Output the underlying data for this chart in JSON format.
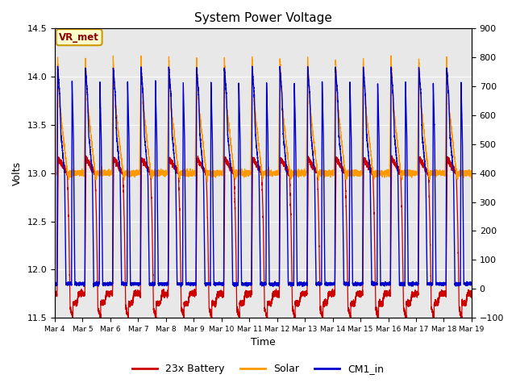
{
  "title": "System Power Voltage",
  "xlabel": "Time",
  "ylabel": "Volts",
  "xlim": [
    0,
    15
  ],
  "ylim_left": [
    11.5,
    14.5
  ],
  "ylim_right": [
    -100,
    900
  ],
  "yticks_left": [
    11.5,
    12.0,
    12.5,
    13.0,
    13.5,
    14.0,
    14.5
  ],
  "yticks_right": [
    -100,
    0,
    100,
    200,
    300,
    400,
    500,
    600,
    700,
    800,
    900
  ],
  "xtick_labels": [
    "Mar 4",
    "Mar 5",
    "Mar 6",
    "Mar 7",
    "Mar 8",
    "Mar 9",
    "Mar 10",
    "Mar 11",
    "Mar 12",
    "Mar 13",
    "Mar 14",
    "Mar 15",
    "Mar 16",
    "Mar 17",
    "Mar 18",
    "Mar 19"
  ],
  "xtick_positions": [
    0,
    1,
    2,
    3,
    4,
    5,
    6,
    7,
    8,
    9,
    10,
    11,
    12,
    13,
    14,
    15
  ],
  "annotation_text": "VR_met",
  "bg_color": "#e8e8e8",
  "legend_labels": [
    "23x Battery",
    "Solar",
    "CM1_in"
  ],
  "line_battery_color": "#cc0000",
  "line_solar_color": "#ff9900",
  "line_cm1_color": "#0000cc",
  "num_cycles": 15
}
